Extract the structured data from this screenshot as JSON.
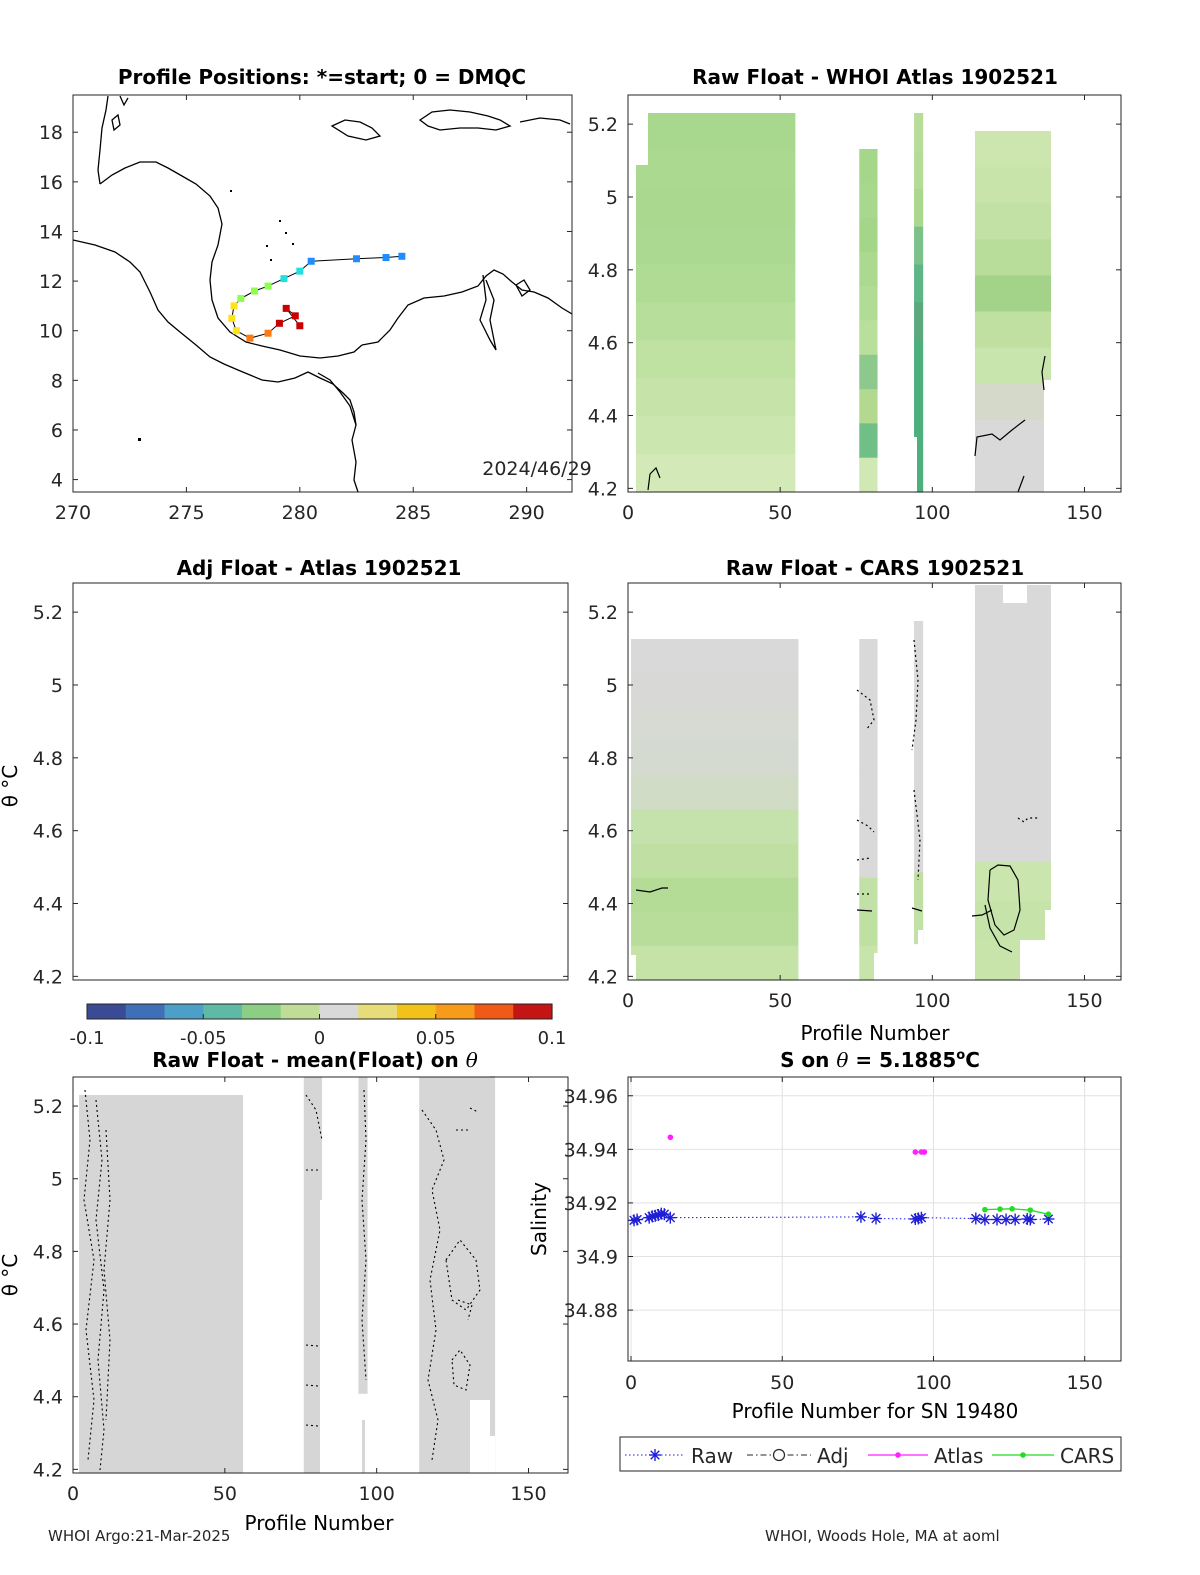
{
  "panels": {
    "map": {
      "title": "Profile Positions: *=start; 0 = DMQC",
      "xticks": [
        "270",
        "275",
        "280",
        "285",
        "290"
      ],
      "yticks": [
        "4",
        "6",
        "8",
        "10",
        "12",
        "14",
        "16",
        "18"
      ],
      "date_label": "2024/46/29"
    },
    "atlas": {
      "title": "Raw Float - WHOI Atlas  1902521"
    },
    "adj": {
      "title": "Adj Float - Atlas  1902521",
      "ylabel": "θ °C"
    },
    "cars": {
      "title": "Raw Float - CARS  1902521",
      "xlabel": "Profile Number"
    },
    "mean": {
      "title_prefix": "Raw Float - mean(Float) on ",
      "title_theta": "θ",
      "ylabel": "θ °C",
      "xlabel": "Profile Number"
    },
    "salinity": {
      "title_prefix": "S on ",
      "title_theta": "θ",
      "title_value": " = 5.1885",
      "title_unit_sup": "o",
      "title_unit": "C",
      "ylabel": "Salinity",
      "xlabel": "Profile Number for SN 19480"
    }
  },
  "theta_ticks": [
    "4.2",
    "4.4",
    "4.6",
    "4.8",
    "5",
    "5.2"
  ],
  "profile_ticks": [
    "0",
    "50",
    "100",
    "150"
  ],
  "colorbar": {
    "ticks": [
      "-0.1",
      "-0.05",
      "0",
      "0.05",
      "0.1"
    ],
    "colors": [
      "#3b4a95",
      "#3f6fb6",
      "#4c9fc6",
      "#5fb9a4",
      "#8ccf84",
      "#c0dd98",
      "#d9d9d9",
      "#e8dc7a",
      "#f2c11a",
      "#f79b1a",
      "#ef5a16",
      "#c41414"
    ]
  },
  "legend": {
    "items": [
      "Raw",
      "Adj",
      "Atlas",
      "CARS"
    ],
    "colors": [
      "#1f1fd6",
      "#262626",
      "#ff22ff",
      "#22dd22"
    ]
  },
  "footer": {
    "left": "WHOI Argo:21-Mar-2025",
    "right": "WHOI, Woods Hole, MA at aoml"
  },
  "chart_data": [
    {
      "type": "scatter",
      "title": "Profile Positions: *=start; 0 = DMQC",
      "xlim": [
        270,
        292
      ],
      "ylim": [
        3.5,
        19.5
      ],
      "series": [
        {
          "x": [
            284.5,
            283.8,
            282.5,
            280.5,
            280.0,
            279.3,
            278.6,
            278.0,
            277.4,
            277.1,
            277.0,
            277.2,
            277.8,
            278.6,
            279.1,
            279.8,
            279.4,
            280.0
          ],
          "y": [
            13.0,
            12.95,
            12.9,
            12.8,
            12.4,
            12.1,
            11.8,
            11.6,
            11.3,
            11.0,
            10.5,
            10.0,
            9.7,
            9.9,
            10.3,
            10.6,
            10.9,
            10.2
          ]
        }
      ]
    },
    {
      "type": "heatmap",
      "title": "Raw Float - WHOI Atlas  1902521",
      "xlim": [
        0,
        162
      ],
      "ylim": [
        4.19,
        5.28
      ],
      "profile_ranges": [
        [
          2,
          55
        ],
        [
          76,
          82
        ],
        [
          94,
          97
        ],
        [
          114,
          139
        ]
      ]
    },
    {
      "type": "heatmap",
      "title": "Adj Float - Atlas  1902521",
      "xlim": [
        0,
        162
      ],
      "ylim": [
        4.19,
        5.28
      ]
    },
    {
      "type": "heatmap",
      "title": "Raw Float - CARS  1902521",
      "xlim": [
        0,
        162
      ],
      "ylim": [
        4.19,
        5.28
      ],
      "profile_ranges": [
        [
          1,
          56
        ],
        [
          76,
          82
        ],
        [
          94,
          97
        ],
        [
          114,
          139
        ]
      ]
    },
    {
      "type": "heatmap",
      "title": "Raw Float - mean(Float) on θ",
      "xlim": [
        0,
        163
      ],
      "ylim": [
        4.19,
        5.28
      ],
      "profile_ranges": [
        [
          2,
          56
        ],
        [
          76,
          82
        ],
        [
          94,
          97
        ],
        [
          114,
          139
        ]
      ]
    },
    {
      "type": "line",
      "title": "S on θ = 5.1885°C",
      "xlabel": "Profile Number for SN 19480",
      "ylabel": "Salinity",
      "xlim": [
        -1,
        162
      ],
      "ylim": [
        34.861,
        34.967
      ],
      "yticks": [
        34.88,
        34.9,
        34.92,
        34.94,
        34.96
      ],
      "series": [
        {
          "name": "Raw",
          "x": [
            1,
            2,
            6,
            7,
            8,
            9,
            10,
            11,
            13,
            76,
            81,
            94,
            95,
            96,
            114,
            117,
            121,
            124,
            127,
            131,
            132,
            138
          ],
          "y": [
            34.9135,
            34.9138,
            34.9145,
            34.915,
            34.9152,
            34.9155,
            34.916,
            34.9158,
            34.9145,
            34.9148,
            34.9142,
            34.914,
            34.9142,
            34.9145,
            34.9142,
            34.9138,
            34.9138,
            34.9138,
            34.9138,
            34.914,
            34.9138,
            34.914
          ]
        },
        {
          "name": "Adj",
          "x": [],
          "y": []
        },
        {
          "name": "Atlas",
          "x": [
            13,
            94,
            96,
            97
          ],
          "y": [
            34.9445,
            34.939,
            34.939,
            34.939
          ]
        },
        {
          "name": "CARS",
          "x": [
            117,
            122,
            126,
            132,
            138
          ],
          "y": [
            34.9175,
            34.9177,
            34.9178,
            34.9173,
            34.9158
          ]
        }
      ]
    }
  ]
}
